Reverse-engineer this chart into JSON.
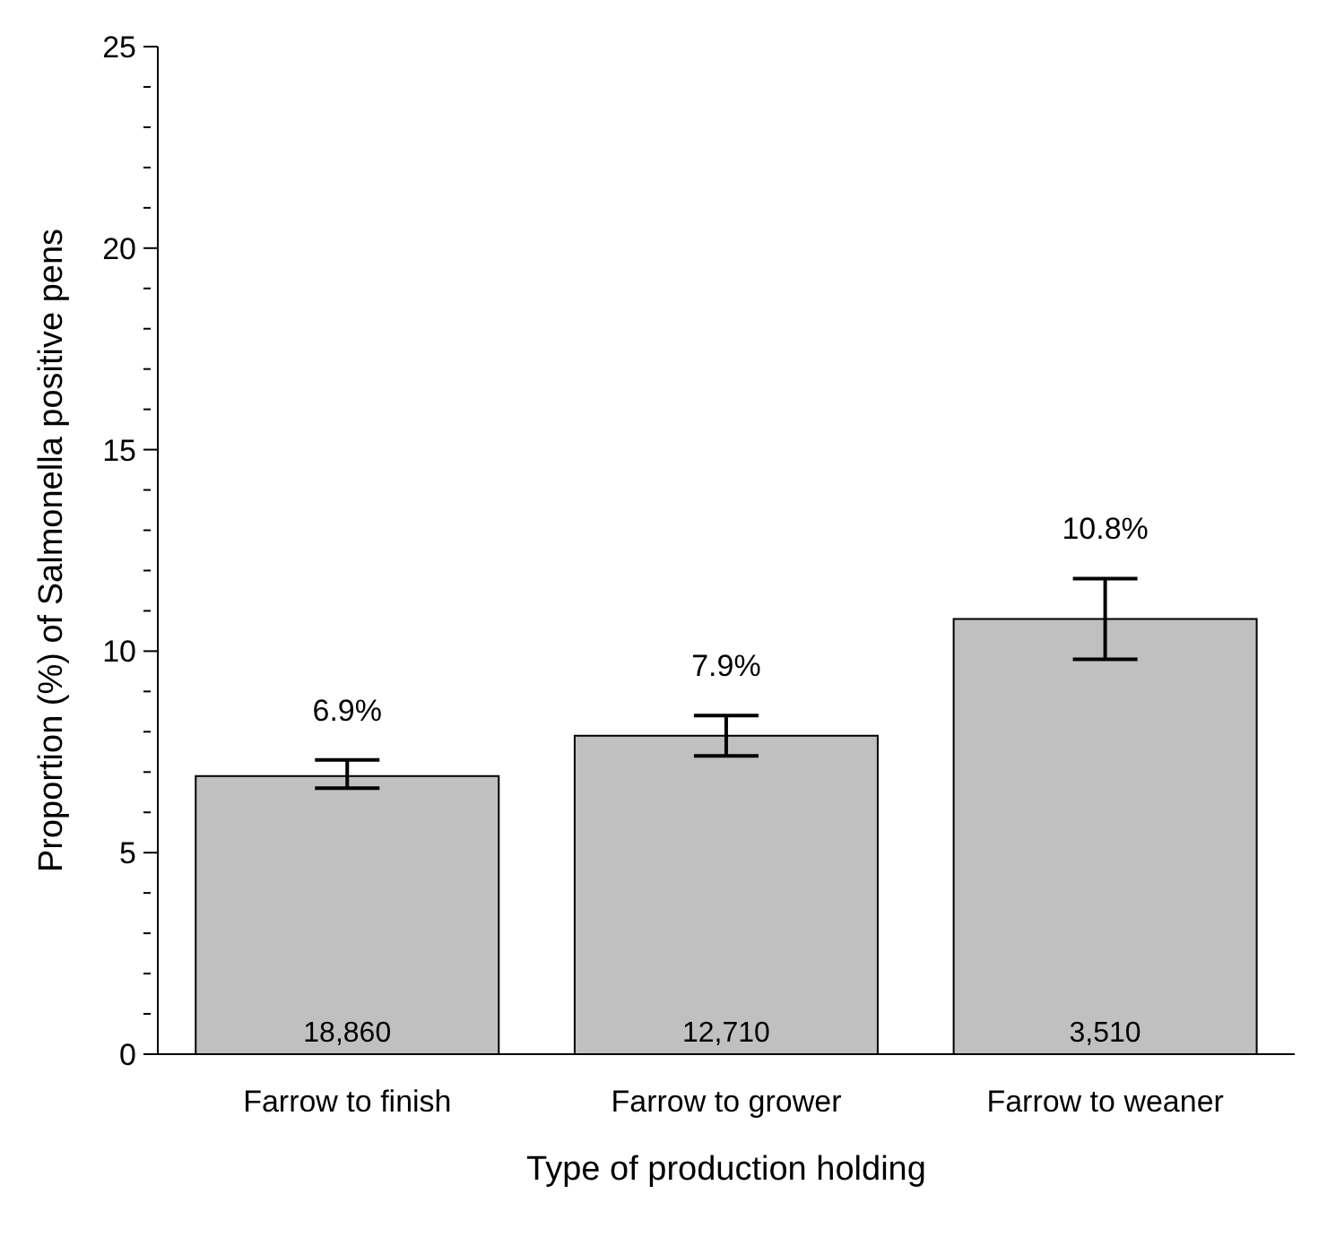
{
  "chart_data": {
    "type": "bar",
    "xlabel": "Type of production holding",
    "ylabel": "Proportion (%) of Salmonella positive pens",
    "categories": [
      "Farrow to finish",
      "Farrow to grower",
      "Farrow to weaner"
    ],
    "values": [
      6.9,
      7.9,
      10.8
    ],
    "value_labels": [
      "6.9%",
      "7.9%",
      "10.8%"
    ],
    "errors": [
      [
        6.6,
        7.3
      ],
      [
        7.4,
        8.4
      ],
      [
        9.8,
        11.8
      ]
    ],
    "color": "#c0c0c0",
    "ylim": [
      0,
      25
    ],
    "yticks": [
      0,
      {
        "value": 1,
        "label": null
      },
      {
        "value": 2,
        "label": null
      },
      {
        "value": 3,
        "label": null
      },
      {
        "value": 4,
        "label": null
      },
      5,
      {
        "value": 6,
        "label": null
      },
      {
        "value": 7,
        "label": null
      },
      {
        "value": 8,
        "label": null
      },
      {
        "value": 9,
        "label": null
      },
      10,
      {
        "value": 11,
        "label": null
      },
      {
        "value": 12,
        "label": null
      },
      {
        "value": 13,
        "label": null
      },
      {
        "value": 14,
        "label": null
      },
      15,
      {
        "value": 16,
        "label": null
      },
      {
        "value": 17,
        "label": null
      },
      {
        "value": 18,
        "label": null
      },
      {
        "value": 19,
        "label": null
      },
      20,
      {
        "value": 21,
        "label": null
      },
      {
        "value": 22,
        "label": null
      },
      {
        "value": 23,
        "label": null
      },
      {
        "value": 24,
        "label": null
      },
      25
    ],
    "annotations": [
      {
        "text": "18,860",
        "x": "Farrow to finish",
        "y": 0
      },
      {
        "text": "12,710",
        "x": "Farrow to grower",
        "y": 0
      },
      {
        "text": "3,510",
        "x": "Farrow to weaner",
        "y": 0
      }
    ],
    "grid": false,
    "legend": false
  }
}
